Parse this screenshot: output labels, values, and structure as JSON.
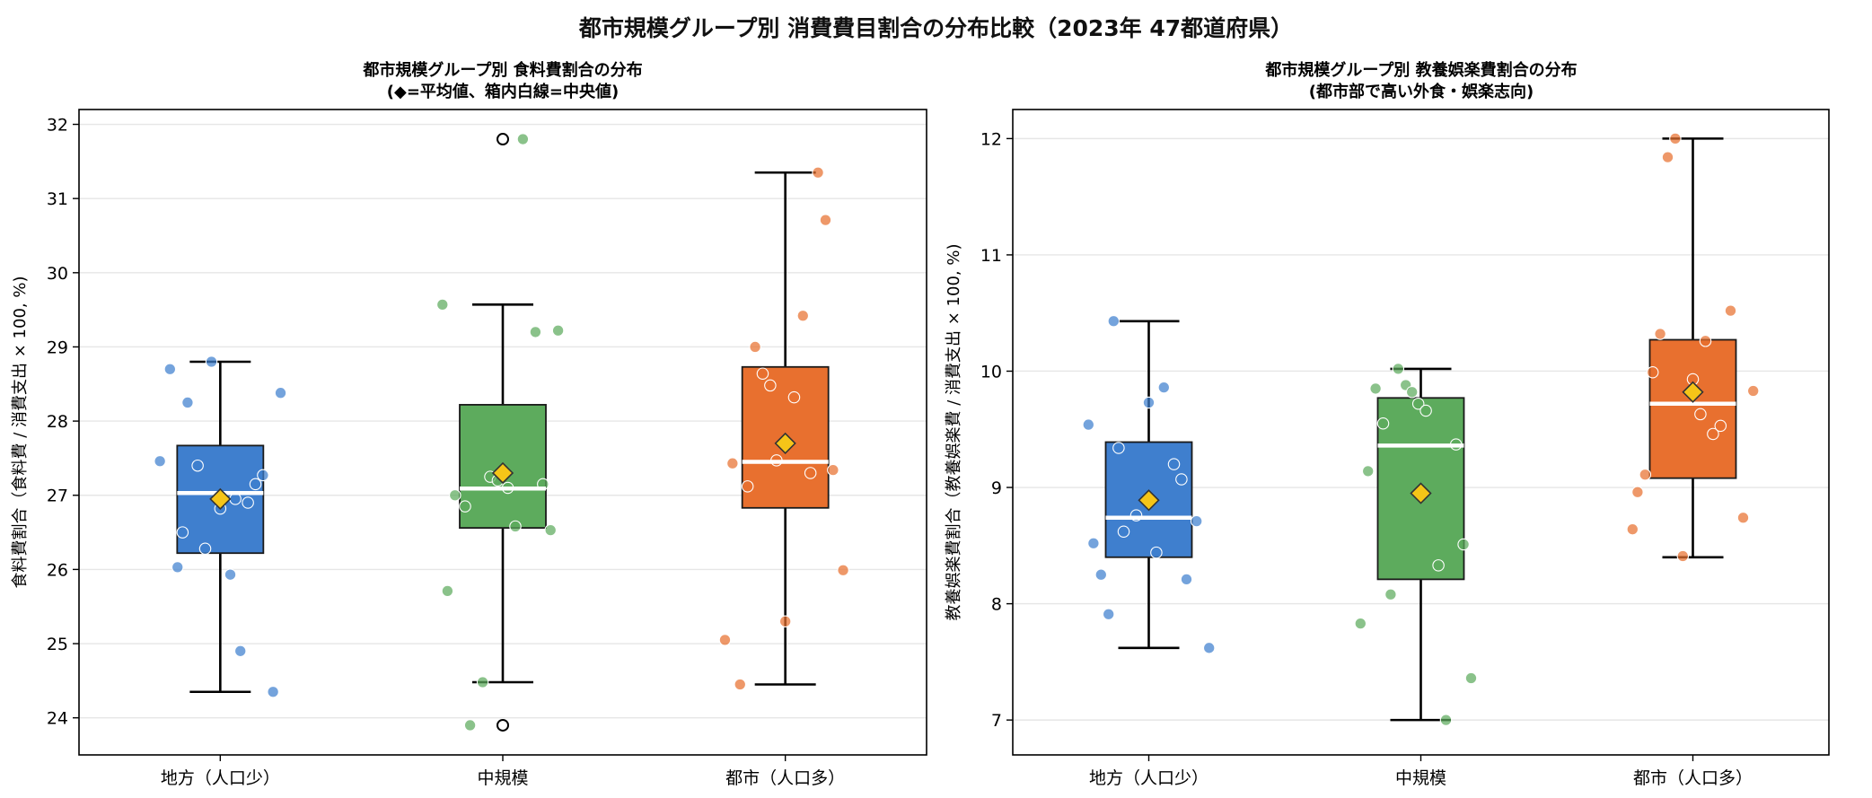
{
  "figure": {
    "title": "都市規模グループ別 消費費目割合の分布比較（2023年 47都道府県）"
  },
  "colors": {
    "local": "#3f7fce",
    "mid": "#5dab5d",
    "urban": "#e8702f",
    "mean_marker": "#f5c518",
    "median_line": "#ffffff",
    "grid": "#e6e6e6"
  },
  "chart_data": [
    {
      "type": "box",
      "title_line1": "都市規模グループ別 食料費割合の分布",
      "title_line2": "(◆=平均値、箱内白線=中央値)",
      "ylabel": "食料費割合（食料費 / 消費支出 × 100, %)",
      "xlabel": "",
      "ylim": [
        23.5,
        32.2
      ],
      "yticks": [
        "24",
        "25",
        "26",
        "27",
        "28",
        "29",
        "30",
        "31",
        "32"
      ],
      "grid": true,
      "categories": [
        "地方（人口少）",
        "中規模",
        "都市（人口多）"
      ],
      "series": [
        {
          "category": "地方（人口少）",
          "color_key": "local",
          "min": 24.35,
          "q1": 26.22,
          "median": 27.03,
          "q3": 27.67,
          "max": 28.8,
          "mean": 26.95,
          "outliers": [],
          "points": [
            {
              "offset": -0.48,
              "y": 27.46
            },
            {
              "offset": -0.4,
              "y": 28.7
            },
            {
              "offset": -0.3,
              "y": 26.5
            },
            {
              "offset": -0.26,
              "y": 28.25
            },
            {
              "offset": -0.34,
              "y": 26.03
            },
            {
              "offset": -0.18,
              "y": 27.4
            },
            {
              "offset": -0.12,
              "y": 26.28
            },
            {
              "offset": -0.07,
              "y": 28.8
            },
            {
              "offset": 0.0,
              "y": 26.82
            },
            {
              "offset": 0.08,
              "y": 25.93
            },
            {
              "offset": 0.12,
              "y": 26.95
            },
            {
              "offset": 0.16,
              "y": 24.9
            },
            {
              "offset": 0.22,
              "y": 26.9
            },
            {
              "offset": 0.28,
              "y": 27.15
            },
            {
              "offset": 0.34,
              "y": 27.27
            },
            {
              "offset": 0.42,
              "y": 24.35
            },
            {
              "offset": 0.48,
              "y": 28.38
            }
          ]
        },
        {
          "category": "中規模",
          "color_key": "mid",
          "min": 24.48,
          "q1": 26.56,
          "median": 27.09,
          "q3": 28.22,
          "max": 29.57,
          "mean": 27.3,
          "outliers": [
            31.8,
            23.9
          ],
          "points": [
            {
              "offset": -0.48,
              "y": 29.57
            },
            {
              "offset": -0.44,
              "y": 25.71
            },
            {
              "offset": -0.38,
              "y": 27.0
            },
            {
              "offset": -0.3,
              "y": 26.85
            },
            {
              "offset": -0.26,
              "y": 23.9
            },
            {
              "offset": -0.16,
              "y": 24.48
            },
            {
              "offset": -0.1,
              "y": 27.25
            },
            {
              "offset": -0.04,
              "y": 27.2
            },
            {
              "offset": 0.04,
              "y": 27.1
            },
            {
              "offset": 0.1,
              "y": 26.58
            },
            {
              "offset": 0.16,
              "y": 31.8
            },
            {
              "offset": 0.26,
              "y": 29.2
            },
            {
              "offset": 0.32,
              "y": 27.15
            },
            {
              "offset": 0.38,
              "y": 26.53
            },
            {
              "offset": 0.44,
              "y": 29.22
            }
          ]
        },
        {
          "category": "都市（人口多）",
          "color_key": "urban",
          "min": 24.45,
          "q1": 26.83,
          "median": 27.45,
          "q3": 28.73,
          "max": 31.35,
          "mean": 27.7,
          "outliers": [],
          "points": [
            {
              "offset": -0.48,
              "y": 25.05
            },
            {
              "offset": -0.42,
              "y": 27.43
            },
            {
              "offset": -0.36,
              "y": 24.45
            },
            {
              "offset": -0.3,
              "y": 27.12
            },
            {
              "offset": -0.24,
              "y": 29.0
            },
            {
              "offset": -0.18,
              "y": 28.64
            },
            {
              "offset": -0.12,
              "y": 28.48
            },
            {
              "offset": -0.07,
              "y": 27.47
            },
            {
              "offset": 0.0,
              "y": 25.3
            },
            {
              "offset": 0.07,
              "y": 28.32
            },
            {
              "offset": 0.14,
              "y": 29.42
            },
            {
              "offset": 0.2,
              "y": 27.3
            },
            {
              "offset": 0.26,
              "y": 31.35
            },
            {
              "offset": 0.32,
              "y": 30.71
            },
            {
              "offset": 0.38,
              "y": 27.34
            },
            {
              "offset": 0.46,
              "y": 25.99
            }
          ]
        }
      ]
    },
    {
      "type": "box",
      "title_line1": "都市規模グループ別 教養娯楽費割合の分布",
      "title_line2": "(都市部で高い外食・娯楽志向)",
      "ylabel": "教養娯楽費割合（教養娯楽費 / 消費支出 × 100, %)",
      "xlabel": "",
      "ylim": [
        6.7,
        12.25
      ],
      "yticks": [
        "7",
        "8",
        "9",
        "10",
        "11",
        "12"
      ],
      "grid": true,
      "categories": [
        "地方（人口少）",
        "中規模",
        "都市（人口多）"
      ],
      "series": [
        {
          "category": "地方（人口少）",
          "color_key": "local",
          "min": 7.62,
          "q1": 8.4,
          "median": 8.74,
          "q3": 9.39,
          "max": 10.43,
          "mean": 8.89,
          "outliers": [],
          "points": [
            {
              "offset": -0.48,
              "y": 9.54
            },
            {
              "offset": -0.44,
              "y": 8.52
            },
            {
              "offset": -0.38,
              "y": 8.25
            },
            {
              "offset": -0.32,
              "y": 7.91
            },
            {
              "offset": -0.28,
              "y": 10.43
            },
            {
              "offset": -0.24,
              "y": 9.34
            },
            {
              "offset": -0.2,
              "y": 8.62
            },
            {
              "offset": -0.1,
              "y": 8.76
            },
            {
              "offset": 0.0,
              "y": 9.73
            },
            {
              "offset": 0.06,
              "y": 8.44
            },
            {
              "offset": 0.12,
              "y": 9.86
            },
            {
              "offset": 0.2,
              "y": 9.2
            },
            {
              "offset": 0.26,
              "y": 9.07
            },
            {
              "offset": 0.3,
              "y": 8.21
            },
            {
              "offset": 0.38,
              "y": 8.71
            },
            {
              "offset": 0.48,
              "y": 7.62
            }
          ]
        },
        {
          "category": "中規模",
          "color_key": "mid",
          "min": 7.0,
          "q1": 8.21,
          "median": 9.36,
          "q3": 9.77,
          "max": 10.02,
          "mean": 8.95,
          "outliers": [],
          "points": [
            {
              "offset": -0.48,
              "y": 7.83
            },
            {
              "offset": -0.42,
              "y": 9.14
            },
            {
              "offset": -0.36,
              "y": 9.85
            },
            {
              "offset": -0.3,
              "y": 9.55
            },
            {
              "offset": -0.24,
              "y": 8.08
            },
            {
              "offset": -0.18,
              "y": 10.02
            },
            {
              "offset": -0.12,
              "y": 9.88
            },
            {
              "offset": -0.07,
              "y": 9.82
            },
            {
              "offset": -0.02,
              "y": 9.72
            },
            {
              "offset": 0.04,
              "y": 9.66
            },
            {
              "offset": 0.14,
              "y": 8.33
            },
            {
              "offset": 0.2,
              "y": 7.0
            },
            {
              "offset": 0.28,
              "y": 9.37
            },
            {
              "offset": 0.34,
              "y": 8.51
            },
            {
              "offset": 0.4,
              "y": 7.36
            }
          ]
        },
        {
          "category": "都市（人口多）",
          "color_key": "urban",
          "min": 8.4,
          "q1": 9.08,
          "median": 9.72,
          "q3": 10.27,
          "max": 12.0,
          "mean": 9.82,
          "outliers": [],
          "points": [
            {
              "offset": -0.48,
              "y": 8.64
            },
            {
              "offset": -0.44,
              "y": 8.96
            },
            {
              "offset": -0.38,
              "y": 9.11
            },
            {
              "offset": -0.32,
              "y": 9.99
            },
            {
              "offset": -0.26,
              "y": 10.32
            },
            {
              "offset": -0.2,
              "y": 11.84
            },
            {
              "offset": -0.14,
              "y": 12.0
            },
            {
              "offset": -0.08,
              "y": 8.41
            },
            {
              "offset": 0.0,
              "y": 9.93
            },
            {
              "offset": 0.06,
              "y": 9.63
            },
            {
              "offset": 0.1,
              "y": 10.26
            },
            {
              "offset": 0.16,
              "y": 9.46
            },
            {
              "offset": 0.22,
              "y": 9.53
            },
            {
              "offset": 0.3,
              "y": 10.52
            },
            {
              "offset": 0.4,
              "y": 8.74
            },
            {
              "offset": 0.48,
              "y": 9.83
            }
          ]
        }
      ]
    }
  ]
}
